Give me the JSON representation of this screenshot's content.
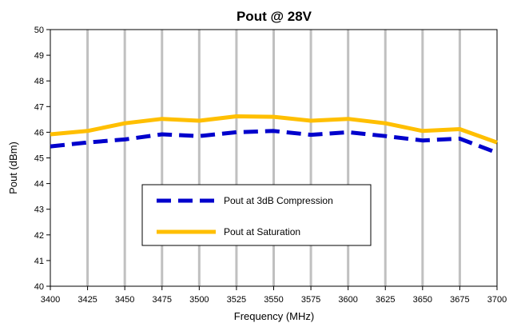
{
  "chart_data": {
    "type": "line",
    "title": "Pout @ 28V",
    "xlabel": "Frequency (MHz)",
    "ylabel": "Pout (dBm)",
    "x": [
      3400,
      3425,
      3450,
      3475,
      3500,
      3525,
      3550,
      3575,
      3600,
      3625,
      3650,
      3675,
      3700
    ],
    "x_ticks": [
      "3400",
      "3425",
      "3450",
      "3475",
      "3500",
      "3525",
      "3550",
      "3575",
      "3600",
      "3625",
      "3650",
      "3675",
      "3700"
    ],
    "y_ticks": [
      "40",
      "41",
      "42",
      "43",
      "44",
      "45",
      "46",
      "47",
      "48",
      "49",
      "50"
    ],
    "xlim": [
      3400,
      3700
    ],
    "ylim": [
      40,
      50
    ],
    "grid": "vertical",
    "legend_placement": "center-left",
    "series": [
      {
        "name": "Pout at 3dB Compression",
        "color": "#0000CC",
        "style": "dashed",
        "values": [
          45.45,
          45.6,
          45.72,
          45.92,
          45.85,
          46.0,
          46.05,
          45.9,
          46.0,
          45.85,
          45.68,
          45.75,
          45.2
        ]
      },
      {
        "name": "Pout at Saturation",
        "color": "#FFBF00",
        "style": "solid",
        "values": [
          45.92,
          46.05,
          46.35,
          46.52,
          46.45,
          46.62,
          46.6,
          46.45,
          46.52,
          46.35,
          46.05,
          46.12,
          45.6
        ]
      }
    ]
  }
}
